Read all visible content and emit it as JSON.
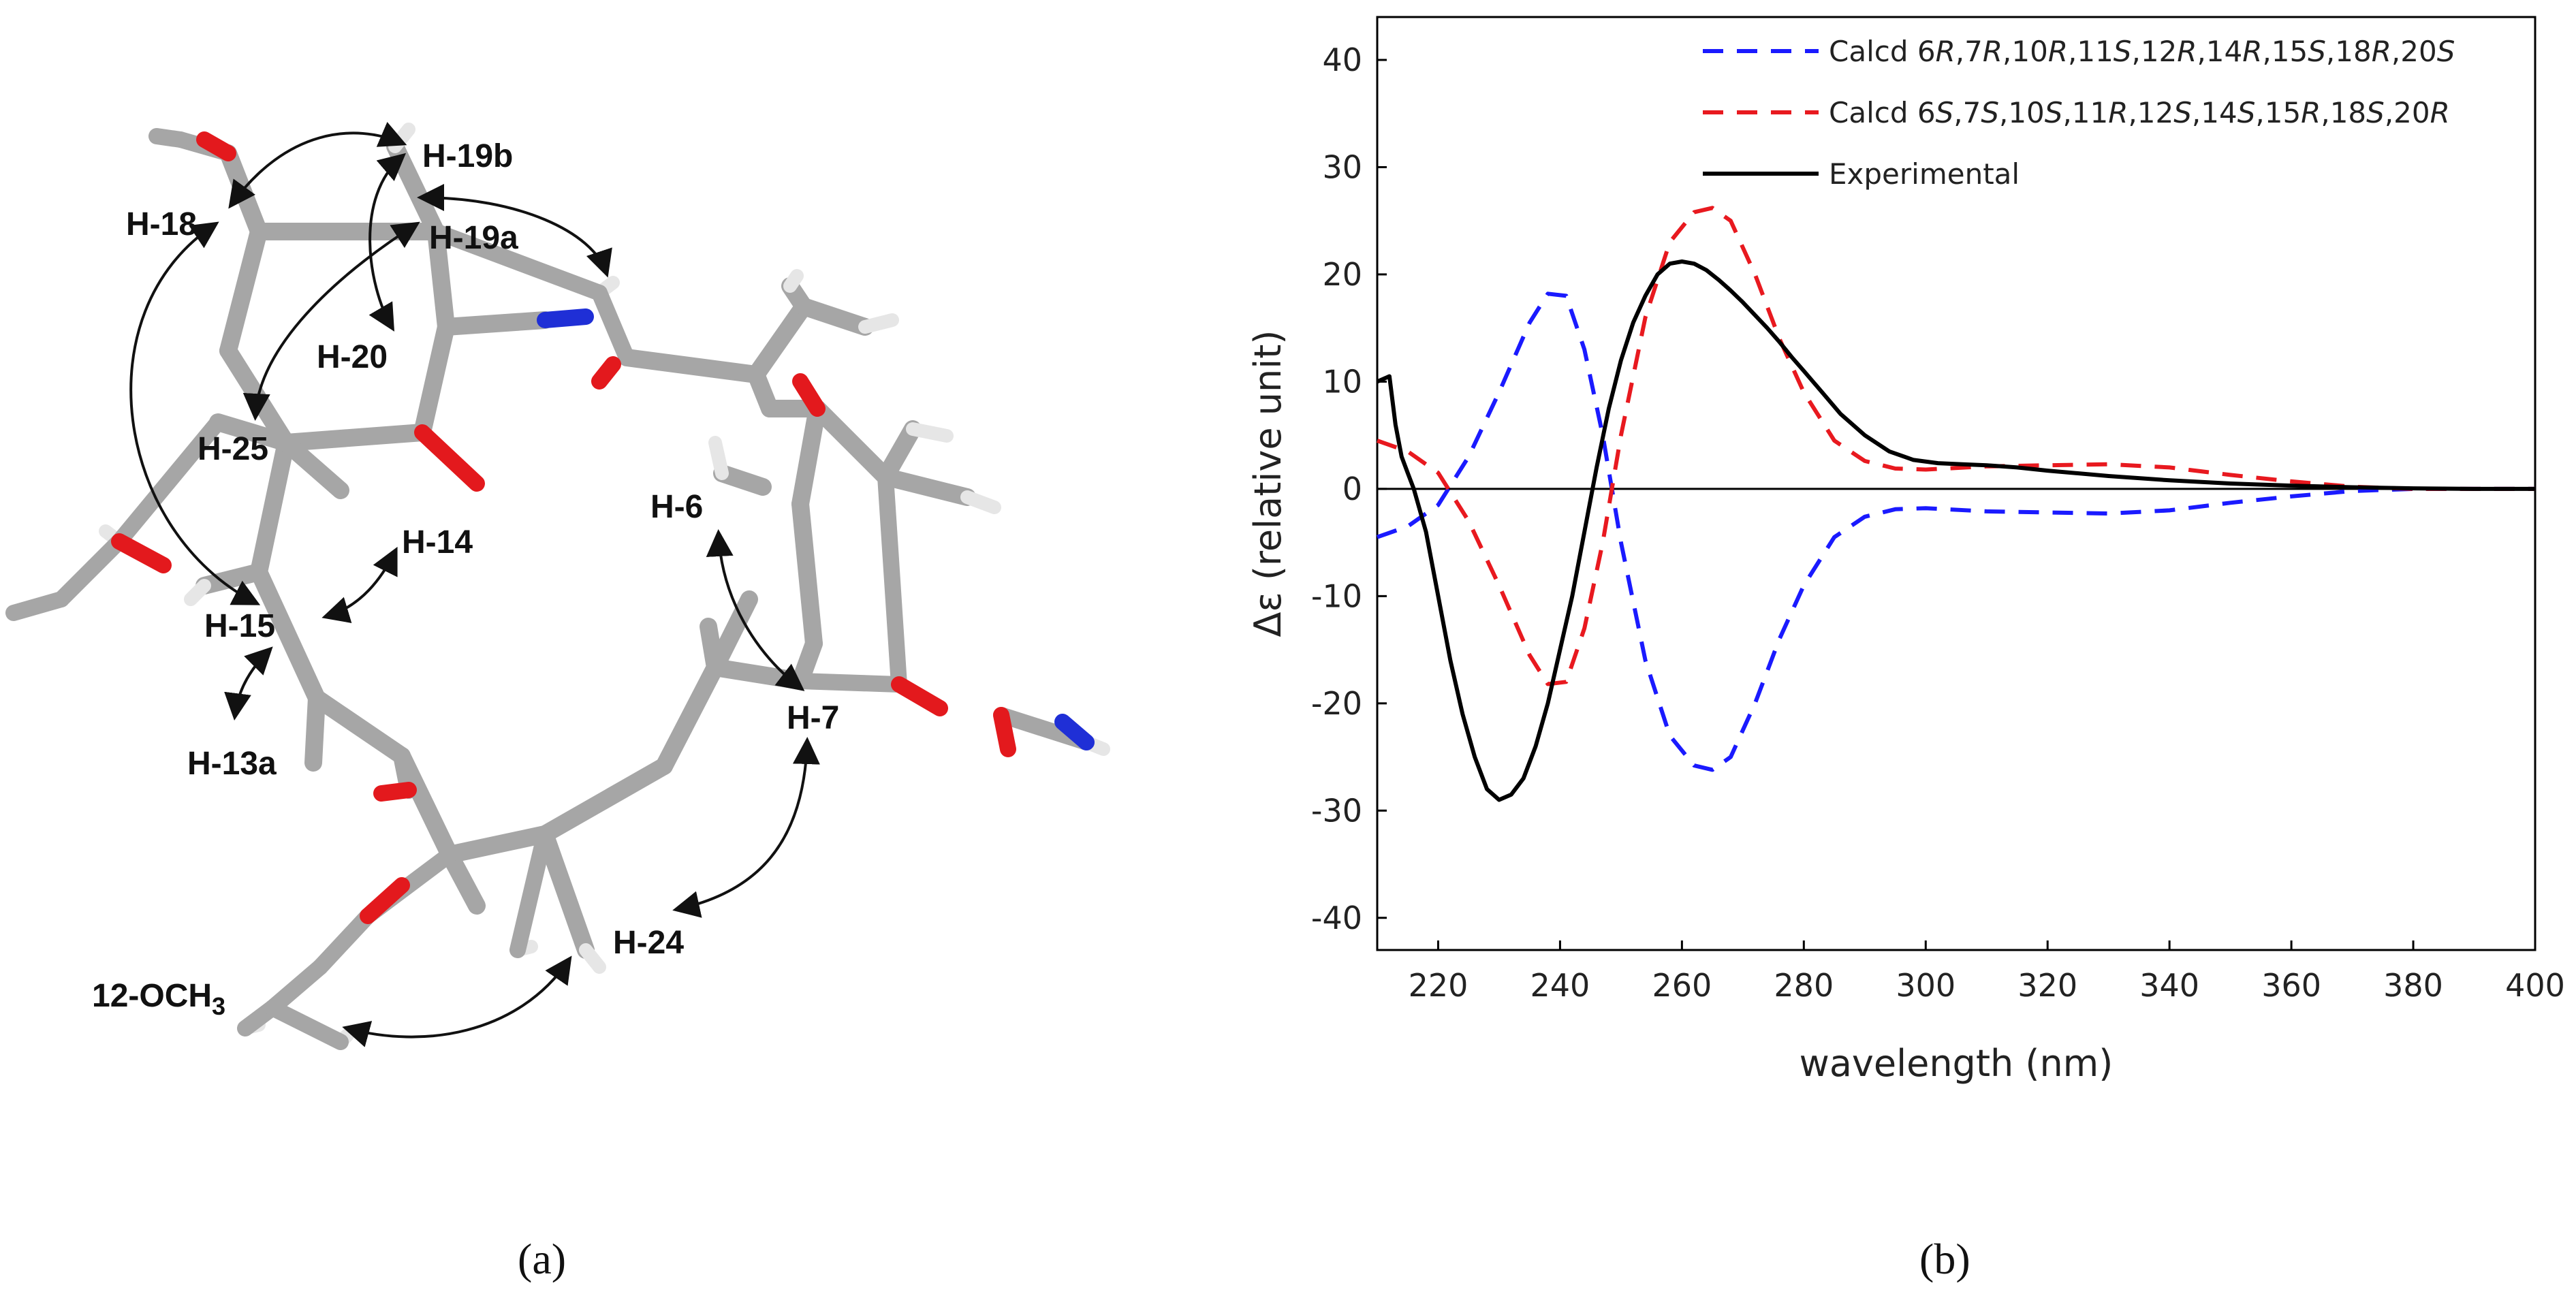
{
  "panel_a": {
    "caption": "(a)",
    "labels": {
      "h18": "H-18",
      "h19b": "H-19b",
      "h19a": "H-19a",
      "h20": "H-20",
      "h25": "H-25",
      "h14": "H-14",
      "h15": "H-15",
      "h13a": "H-13a",
      "h6": "H-6",
      "h7": "H-7",
      "h24": "H-24",
      "och3": "12-OCH",
      "och3_sub": "3"
    }
  },
  "panel_b": {
    "caption": "(b)"
  },
  "colors": {
    "calcd1": "#1a1aff",
    "calcd2": "#e8191f",
    "experimental": "#000000",
    "bond_gray": "#a9a9a9",
    "oxygen": "#e3191d",
    "nitrogen": "#1f2fd6",
    "hydrogen": "#e8e8e8"
  },
  "chart_data": {
    "type": "line",
    "title": "",
    "xlabel": "wavelength (nm)",
    "ylabel": "Δε (relative unit)",
    "xlim": [
      210,
      400
    ],
    "ylim": [
      -43,
      44
    ],
    "xticks": [
      220,
      240,
      260,
      280,
      300,
      320,
      340,
      360,
      380,
      400
    ],
    "yticks": [
      -40,
      -30,
      -20,
      -10,
      0,
      10,
      20,
      30,
      40
    ],
    "legend_position": "top-right",
    "series": [
      {
        "name": "Calcd 6R,7R,10R,11S,12R,14R,15S,18R,20S",
        "legend_parts": [
          {
            "t": "Calcd 6",
            "i": false
          },
          {
            "t": "R",
            "i": true
          },
          {
            "t": ",7",
            "i": false
          },
          {
            "t": "R",
            "i": true
          },
          {
            "t": ",10",
            "i": false
          },
          {
            "t": "R",
            "i": true
          },
          {
            "t": ",11",
            "i": false
          },
          {
            "t": "S",
            "i": true
          },
          {
            "t": ",12",
            "i": false
          },
          {
            "t": "R",
            "i": true
          },
          {
            "t": ",14",
            "i": false
          },
          {
            "t": "R",
            "i": true
          },
          {
            "t": ",15",
            "i": false
          },
          {
            "t": "S",
            "i": true
          },
          {
            "t": ",18",
            "i": false
          },
          {
            "t": "R",
            "i": true
          },
          {
            "t": ",20",
            "i": false
          },
          {
            "t": "S",
            "i": true
          }
        ],
        "style": "dashed",
        "color": "#1a1aff",
        "x": [
          210,
          215,
          220,
          225,
          230,
          235,
          238,
          241,
          244,
          247,
          250,
          254,
          258,
          262,
          265,
          268,
          272,
          276,
          280,
          285,
          290,
          295,
          300,
          310,
          320,
          330,
          340,
          350,
          360,
          370,
          380,
          390,
          400
        ],
        "y": [
          -4.5,
          -3.5,
          -1.5,
          3,
          9,
          15.5,
          18.2,
          18,
          13,
          5,
          -5,
          -16,
          -23,
          -25.8,
          -26.2,
          -25,
          -20,
          -14,
          -9,
          -4.5,
          -2.6,
          -1.9,
          -1.8,
          -2.1,
          -2.2,
          -2.3,
          -2.0,
          -1.3,
          -0.7,
          -0.2,
          0,
          0,
          0
        ]
      },
      {
        "name": "Calcd 6S,7S,10S,11R,12S,14S,15R,18S,20R",
        "legend_parts": [
          {
            "t": "Calcd 6",
            "i": false
          },
          {
            "t": "S",
            "i": true
          },
          {
            "t": ",7",
            "i": false
          },
          {
            "t": "S",
            "i": true
          },
          {
            "t": ",10",
            "i": false
          },
          {
            "t": "S",
            "i": true
          },
          {
            "t": ",11",
            "i": false
          },
          {
            "t": "R",
            "i": true
          },
          {
            "t": ",12",
            "i": false
          },
          {
            "t": "S",
            "i": true
          },
          {
            "t": ",14",
            "i": false
          },
          {
            "t": "S",
            "i": true
          },
          {
            "t": ",15",
            "i": false
          },
          {
            "t": "R",
            "i": true
          },
          {
            "t": ",18",
            "i": false
          },
          {
            "t": "S",
            "i": true
          },
          {
            "t": ",20",
            "i": false
          },
          {
            "t": "R",
            "i": true
          }
        ],
        "style": "dashed",
        "color": "#e8191f",
        "x": [
          210,
          215,
          220,
          225,
          230,
          235,
          238,
          241,
          244,
          247,
          250,
          254,
          258,
          262,
          265,
          268,
          272,
          276,
          280,
          285,
          290,
          295,
          300,
          310,
          320,
          330,
          340,
          350,
          360,
          370,
          380,
          390,
          400
        ],
        "y": [
          4.5,
          3.5,
          1.5,
          -3,
          -9,
          -15.5,
          -18.2,
          -18,
          -13,
          -5,
          5,
          16,
          23,
          25.8,
          26.2,
          25,
          20,
          14,
          9,
          4.5,
          2.6,
          1.9,
          1.8,
          2.1,
          2.2,
          2.3,
          2.0,
          1.3,
          0.7,
          0.2,
          0,
          0,
          0
        ]
      },
      {
        "name": "Experimental",
        "legend_parts": [
          {
            "t": "Experimental",
            "i": false
          }
        ],
        "style": "solid",
        "color": "#000000",
        "x": [
          210,
          212,
          213,
          214,
          215,
          216,
          218,
          220,
          222,
          224,
          226,
          228,
          230,
          232,
          234,
          236,
          238,
          240,
          242,
          244,
          246,
          248,
          250,
          252,
          254,
          256,
          258,
          260,
          262,
          264,
          266,
          268,
          270,
          272,
          274,
          276,
          278,
          280,
          283,
          286,
          290,
          294,
          298,
          302,
          306,
          310,
          315,
          320,
          330,
          340,
          350,
          360,
          370,
          380,
          390,
          400
        ],
        "y": [
          10,
          10.5,
          6,
          3,
          1.5,
          0,
          -4,
          -10,
          -16,
          -21,
          -25,
          -28,
          -29,
          -28.5,
          -27,
          -24,
          -20,
          -15,
          -10,
          -4,
          2,
          7.5,
          12,
          15.5,
          18,
          20,
          21,
          21.2,
          21,
          20.4,
          19.5,
          18.5,
          17.4,
          16.2,
          15,
          13.7,
          12.3,
          11,
          9,
          7,
          5,
          3.5,
          2.7,
          2.4,
          2.3,
          2.2,
          2.0,
          1.7,
          1.2,
          0.8,
          0.5,
          0.3,
          0.15,
          0.05,
          0,
          0
        ]
      }
    ]
  }
}
